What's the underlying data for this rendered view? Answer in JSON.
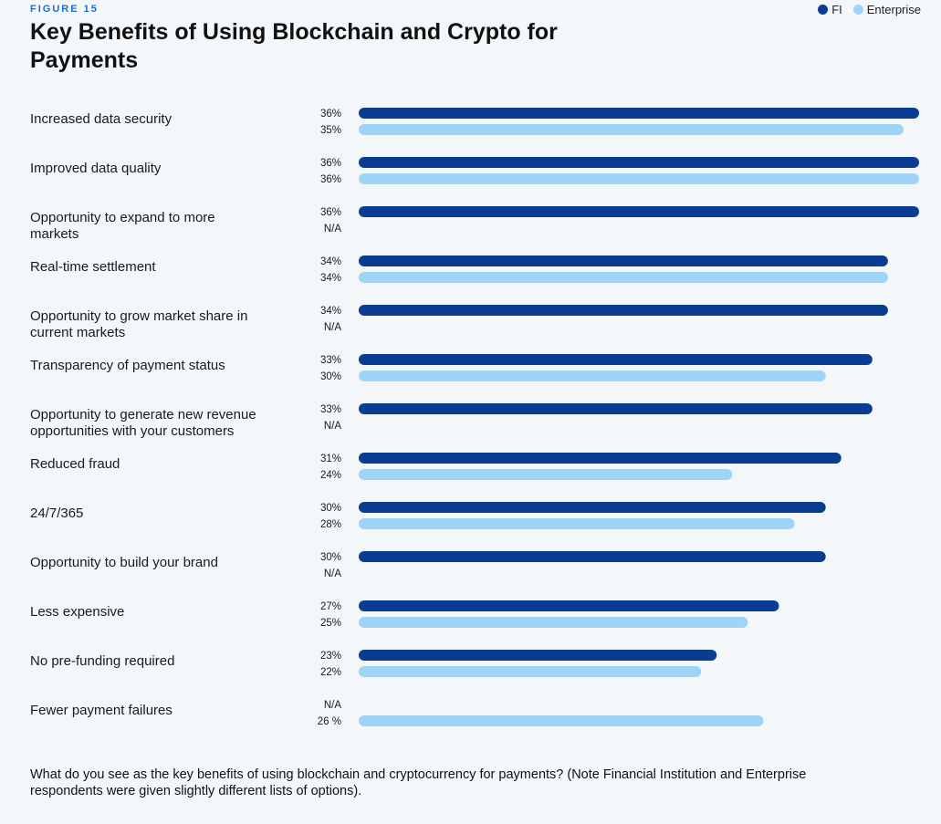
{
  "figure_label": "FIGURE 15",
  "title": "Key Benefits of Using Blockchain and Crypto for Payments",
  "legend": {
    "fi_label": "FI",
    "enterprise_label": "Enterprise"
  },
  "colors": {
    "fi": "#0a3d91",
    "enterprise": "#9dd4f7",
    "eyebrow": "#1a6fd1"
  },
  "footnote": "What do you see as the key benefits of using blockchain and cryptocurrency for payments? (Note Financial Institution and Enterprise respondents were given slightly different lists of options).",
  "chart_data": {
    "type": "bar",
    "orientation": "horizontal",
    "xlim": [
      0,
      36
    ],
    "unit": "%",
    "categories": [
      [
        "Increased data security"
      ],
      [
        "Improved data quality"
      ],
      [
        "Opportunity to expand to more",
        "markets"
      ],
      [
        "Real-time settlement"
      ],
      [
        "Opportunity to grow market share in",
        "current markets"
      ],
      [
        "Transparency of payment status"
      ],
      [
        "Opportunity to generate new revenue",
        "opportunities with your customers"
      ],
      [
        "Reduced fraud"
      ],
      [
        "24/7/365"
      ],
      [
        "Opportunity to build your brand"
      ],
      [
        "Less expensive"
      ],
      [
        "No pre-funding required"
      ],
      [
        "Fewer payment failures"
      ]
    ],
    "series": [
      {
        "name": "FI",
        "values": [
          36,
          36,
          36,
          34,
          34,
          33,
          33,
          31,
          30,
          30,
          27,
          23,
          null
        ],
        "labels": [
          "36%",
          "36%",
          "36%",
          "34%",
          "34%",
          "33%",
          "33%",
          "31%",
          "30%",
          "30%",
          "27%",
          "23%",
          "N/A"
        ]
      },
      {
        "name": "Enterprise",
        "values": [
          35,
          36,
          null,
          34,
          null,
          30,
          null,
          24,
          28,
          null,
          25,
          22,
          26
        ],
        "labels": [
          "35%",
          "36%",
          "N/A",
          "34%",
          "N/A",
          "30%",
          "N/A",
          "24%",
          "28%",
          "N/A",
          "25%",
          "22%",
          "26 %"
        ]
      }
    ]
  }
}
